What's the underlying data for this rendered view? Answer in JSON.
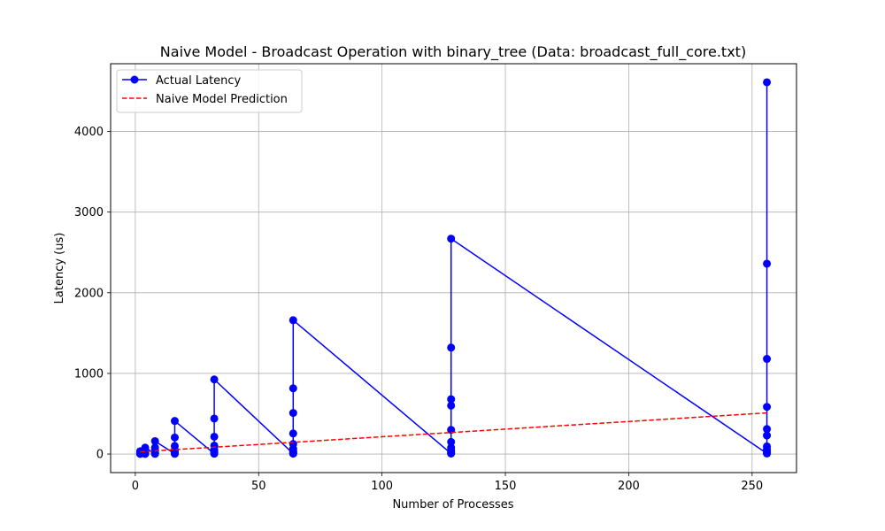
{
  "chart_data": {
    "type": "line",
    "title": "Naive Model - Broadcast Operation with binary_tree (Data: broadcast_full_core.txt)",
    "xlabel": "Number of Processes",
    "ylabel": "Latency (us)",
    "xlim": [
      -10,
      268
    ],
    "ylim": [
      -230,
      4840
    ],
    "xticks": [
      0,
      50,
      100,
      150,
      200,
      250
    ],
    "yticks": [
      0,
      1000,
      2000,
      3000,
      4000
    ],
    "grid": true,
    "legend_position": "upper-left",
    "series": [
      {
        "name": "Actual Latency",
        "style": "solid-marker",
        "color": "#0000ff",
        "points": [
          [
            2,
            2
          ],
          [
            2,
            3
          ],
          [
            2,
            5
          ],
          [
            2,
            10
          ],
          [
            2,
            18
          ],
          [
            2,
            35
          ],
          [
            4,
            2
          ],
          [
            4,
            4
          ],
          [
            4,
            8
          ],
          [
            4,
            15
          ],
          [
            4,
            30
          ],
          [
            4,
            45
          ],
          [
            4,
            80
          ],
          [
            8,
            3
          ],
          [
            8,
            5
          ],
          [
            8,
            10
          ],
          [
            8,
            20
          ],
          [
            8,
            40
          ],
          [
            8,
            80
          ],
          [
            8,
            160
          ],
          [
            16,
            3
          ],
          [
            16,
            6
          ],
          [
            16,
            12
          ],
          [
            16,
            25
          ],
          [
            16,
            50
          ],
          [
            16,
            100
          ],
          [
            16,
            205
          ],
          [
            16,
            410
          ],
          [
            32,
            4
          ],
          [
            32,
            8
          ],
          [
            32,
            15
          ],
          [
            32,
            30
          ],
          [
            32,
            55
          ],
          [
            32,
            105
          ],
          [
            32,
            215
          ],
          [
            32,
            440
          ],
          [
            32,
            925
          ],
          [
            64,
            5
          ],
          [
            64,
            10
          ],
          [
            64,
            20
          ],
          [
            64,
            35
          ],
          [
            64,
            65
          ],
          [
            64,
            125
          ],
          [
            64,
            255
          ],
          [
            64,
            510
          ],
          [
            64,
            815
          ],
          [
            64,
            1660
          ],
          [
            128,
            6
          ],
          [
            128,
            12
          ],
          [
            128,
            25
          ],
          [
            128,
            45
          ],
          [
            128,
            80
          ],
          [
            128,
            150
          ],
          [
            128,
            300
          ],
          [
            128,
            600
          ],
          [
            128,
            680
          ],
          [
            128,
            1320
          ],
          [
            128,
            2670
          ],
          [
            256,
            7
          ],
          [
            256,
            15
          ],
          [
            256,
            30
          ],
          [
            256,
            55
          ],
          [
            256,
            95
          ],
          [
            256,
            230
          ],
          [
            256,
            310
          ],
          [
            256,
            585
          ],
          [
            256,
            1180
          ],
          [
            256,
            2360
          ],
          [
            256,
            4610
          ]
        ]
      },
      {
        "name": "Naive Model Prediction",
        "style": "dashed",
        "color": "#ff0000",
        "points": [
          [
            2,
            28
          ],
          [
            256,
            510
          ]
        ]
      }
    ]
  }
}
